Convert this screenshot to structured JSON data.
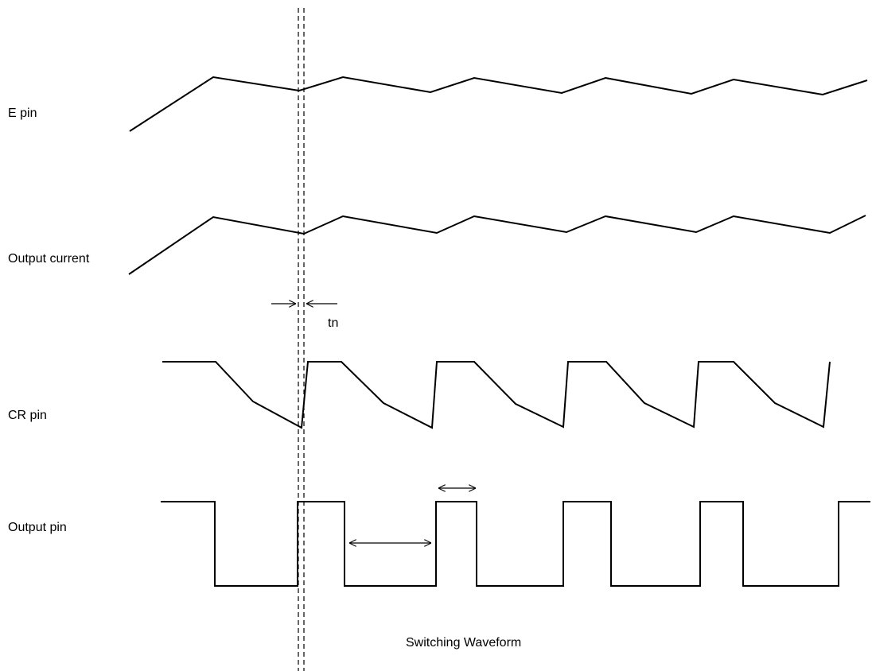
{
  "signals": {
    "e_pin": "E pin",
    "output_current": "Output current",
    "cr_pin": "CR pin",
    "output_pin": "Output pin"
  },
  "annotations": {
    "tn": "tn"
  },
  "caption": "Switching Waveform",
  "colors": {
    "trace": "#000000",
    "background": "#ffffff"
  }
}
